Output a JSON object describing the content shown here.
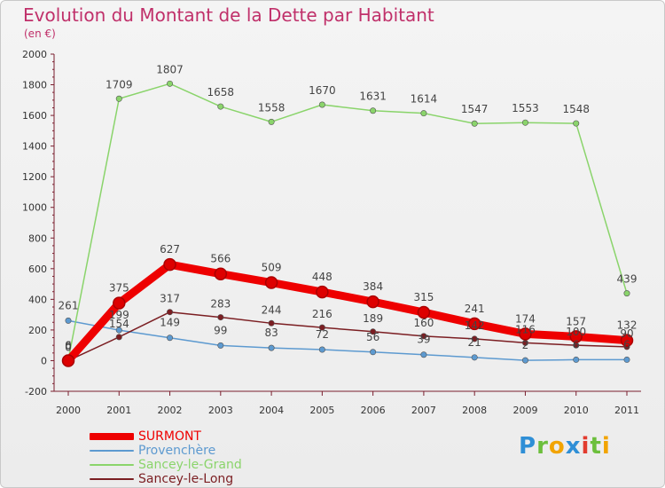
{
  "chart_data": {
    "type": "line",
    "title": "Evolution du Montant de la Dette par Habitant",
    "subtitle": "(en €)",
    "xlabel": "",
    "ylabel": "",
    "ylim": [
      -200,
      2000
    ],
    "yticks": [
      "-200",
      "0",
      "200",
      "400",
      "600",
      "800",
      "1000",
      "1200",
      "1400",
      "1600",
      "1800",
      "2000"
    ],
    "categories": [
      "2000",
      "2001",
      "2002",
      "2003",
      "2004",
      "2005",
      "2006",
      "2007",
      "2008",
      "2009",
      "2010",
      "2011"
    ],
    "grid": false,
    "legend_position": "bottom-left",
    "series": [
      {
        "name": "Provenchère",
        "color": "#5d9ad0",
        "values": [
          261,
          199,
          149,
          99,
          83,
          72,
          56,
          39,
          21,
          2,
          6,
          6
        ],
        "labels": [
          "261",
          "199",
          "149",
          "99",
          "83",
          "72",
          "56",
          "39",
          "21",
          "2",
          "6",
          "6"
        ]
      },
      {
        "name": "Sancey-le-Grand",
        "color": "#8ad46b",
        "values": [
          6,
          1709,
          1807,
          1658,
          1558,
          1670,
          1631,
          1614,
          1547,
          1553,
          1548,
          439
        ],
        "labels": [
          "6",
          "1709",
          "1807",
          "1658",
          "1558",
          "1670",
          "1631",
          "1614",
          "1547",
          "1553",
          "1548",
          "439"
        ]
      },
      {
        "name": "Sancey-le-Long",
        "color": "#7b1e22",
        "values": [
          0,
          154,
          317,
          283,
          244,
          216,
          189,
          160,
          142,
          116,
          100,
          90
        ],
        "labels": [
          "0",
          "154",
          "317",
          "283",
          "244",
          "216",
          "189",
          "160",
          "142",
          "116",
          "100",
          "90"
        ]
      },
      {
        "name": "SURMONT",
        "color": "#ee0000",
        "emphasis": true,
        "values": [
          0,
          375,
          627,
          566,
          509,
          448,
          384,
          315,
          241,
          174,
          157,
          132
        ],
        "labels": [
          "0",
          "375",
          "627",
          "566",
          "509",
          "448",
          "384",
          "315",
          "241",
          "174",
          "157",
          "132"
        ]
      }
    ]
  },
  "legend": {
    "items": [
      {
        "label": "SURMONT",
        "color": "#ee0000"
      },
      {
        "label": "Provenchère",
        "color": "#5d9ad0"
      },
      {
        "label": "Sancey-le-Grand",
        "color": "#8ad46b"
      },
      {
        "label": "Sancey-le-Long",
        "color": "#7b1e22"
      }
    ]
  },
  "brand": {
    "letters": [
      "P",
      "r",
      "o",
      "x",
      "i",
      "t",
      "i"
    ],
    "colors": [
      "#2f8fd6",
      "#6cbf3c",
      "#f2a400",
      "#2f8fd6",
      "#e23b2e",
      "#6cbf3c",
      "#f2a400"
    ]
  }
}
